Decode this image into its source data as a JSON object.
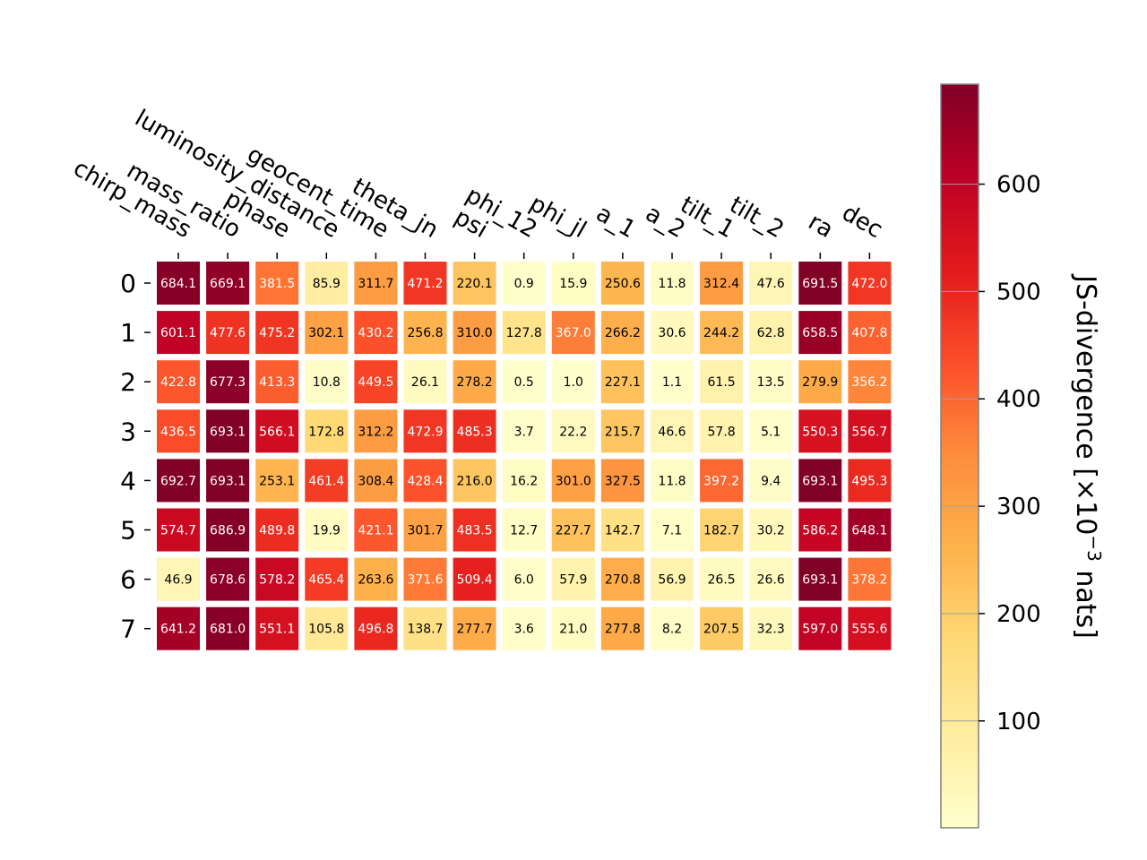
{
  "chart_data": {
    "type": "heatmap",
    "columns": [
      "chirp_mass",
      "mass_ratio",
      "phase",
      "luminosity_distance",
      "geocent_time",
      "theta_jn",
      "psi",
      "phi_12",
      "phi_jl",
      "a_1",
      "a_2",
      "tilt_1",
      "tilt_2",
      "ra",
      "dec"
    ],
    "rows": [
      "0",
      "1",
      "2",
      "3",
      "4",
      "5",
      "6",
      "7"
    ],
    "values": [
      [
        684.1,
        669.1,
        381.5,
        85.9,
        311.7,
        471.2,
        220.1,
        0.9,
        15.9,
        250.6,
        11.8,
        312.4,
        47.6,
        691.5,
        472.0
      ],
      [
        601.1,
        477.6,
        475.2,
        302.1,
        430.2,
        256.8,
        310.0,
        127.8,
        367.0,
        266.2,
        30.6,
        244.2,
        62.8,
        658.5,
        407.8
      ],
      [
        422.8,
        677.3,
        413.3,
        10.8,
        449.5,
        26.1,
        278.2,
        0.5,
        1.0,
        227.1,
        1.1,
        61.5,
        13.5,
        279.9,
        356.2
      ],
      [
        436.5,
        693.1,
        566.1,
        172.8,
        312.2,
        472.9,
        485.3,
        3.7,
        22.2,
        215.7,
        46.6,
        57.8,
        5.1,
        550.3,
        556.7
      ],
      [
        692.7,
        693.1,
        253.1,
        461.4,
        308.4,
        428.4,
        216.0,
        16.2,
        301.0,
        327.5,
        11.8,
        397.2,
        9.4,
        693.1,
        495.3
      ],
      [
        574.7,
        686.9,
        489.8,
        19.9,
        421.1,
        301.7,
        483.5,
        12.7,
        227.7,
        142.7,
        7.1,
        182.7,
        30.2,
        586.2,
        648.1
      ],
      [
        46.9,
        678.6,
        578.2,
        465.4,
        263.6,
        371.6,
        509.4,
        6.0,
        57.9,
        270.8,
        56.9,
        26.5,
        26.6,
        693.1,
        378.2
      ],
      [
        641.2,
        681.0,
        551.1,
        105.8,
        496.8,
        138.7,
        277.7,
        3.6,
        21.0,
        277.8,
        8.2,
        207.5,
        32.3,
        597.0,
        555.6
      ]
    ],
    "colormap": "YlOrRd",
    "vmin": 0.5,
    "vmax": 693.1,
    "colorbar": {
      "label_main": "JS-divergence [×10",
      "label_exp": "−3",
      "label_tail": " nats]",
      "ticks": [
        100,
        200,
        300,
        400,
        500,
        600
      ]
    }
  }
}
